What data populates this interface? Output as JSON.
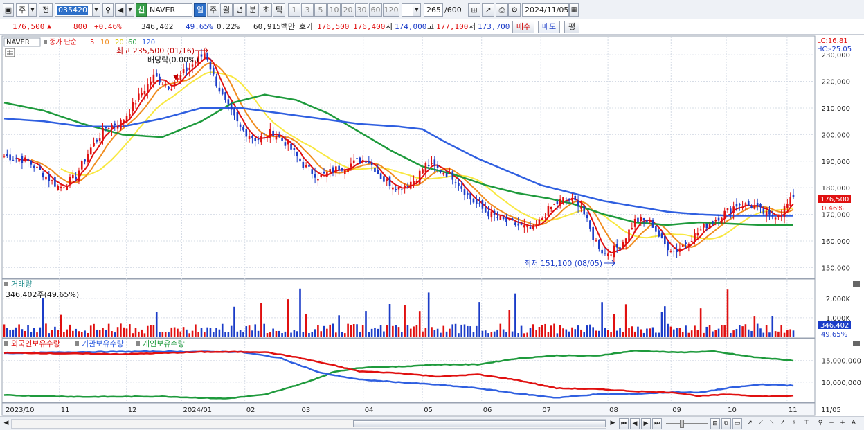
{
  "toolbar": {
    "market": "주",
    "prev_label": "전",
    "code": "035420",
    "new_badge": "신",
    "stock_name": "NAVER",
    "periods": [
      "일",
      "주",
      "월",
      "년",
      "분",
      "초",
      "틱"
    ],
    "active_period": "일",
    "intervals": [
      "1",
      "3",
      "5",
      "10",
      "20",
      "30",
      "60",
      "120"
    ],
    "count": "265",
    "count_total": "/600",
    "date": "2024/11/05"
  },
  "infobar": {
    "price": "176,500",
    "change": "800",
    "change_pct": "+0.46%",
    "volume": "346,402",
    "vol_ratio": "49.65%",
    "turnover_pct": "0.22%",
    "trade_value": "60,915백만",
    "ask_label": "호가",
    "ask1": "176,500",
    "ask2": "176,400",
    "open_label": "시",
    "open": "174,000",
    "high_label": "고",
    "high": "177,100",
    "low_label": "저",
    "low": "173,700",
    "buy_label": "매수",
    "sell_label": "매도",
    "eval_label": "평"
  },
  "chart_data": {
    "type": "candlestick",
    "legend": {
      "name": "NAVER",
      "close_label": "종가 단순",
      "ma": [
        {
          "period": "5",
          "color": "#e01010"
        },
        {
          "period": "10",
          "color": "#f08c1e"
        },
        {
          "period": "20",
          "color": "#f0e020"
        },
        {
          "period": "60",
          "color": "#1e9a3c"
        },
        {
          "period": "120",
          "color": "#2f5fe0"
        }
      ]
    },
    "lc_label": "LC:16.81",
    "hc_label": "HC:-25.05",
    "price_axis": [
      "230,000",
      "220,000",
      "210,000",
      "200,000",
      "190,000",
      "180,000",
      "170,000",
      "160,000",
      "150,000"
    ],
    "price_ticks": [
      230000,
      220000,
      210000,
      200000,
      190000,
      180000,
      170000,
      160000,
      150000
    ],
    "price_range": [
      147500,
      235500
    ],
    "last_price_tag": "176,500",
    "last_pct_tag": "0.46%",
    "high_annotation": "최고 235,500 (01/16)",
    "low_annotation": "최저 151,100 (08/05)",
    "dividend_annotation": "배당락(0.00%)",
    "x_labels": [
      "2023/10",
      "11",
      "12",
      "2024/01",
      "02",
      "03",
      "04",
      "05",
      "06",
      "07",
      "08",
      "09",
      "10",
      "11",
      "11/05"
    ],
    "price_series": [
      [
        0,
        192
      ],
      [
        0.03,
        190
      ],
      [
        0.05,
        185
      ],
      [
        0.07,
        180
      ],
      [
        0.09,
        184
      ],
      [
        0.11,
        195
      ],
      [
        0.13,
        203
      ],
      [
        0.15,
        205
      ],
      [
        0.17,
        214
      ],
      [
        0.19,
        222
      ],
      [
        0.21,
        218
      ],
      [
        0.23,
        224
      ],
      [
        0.245,
        228
      ],
      [
        0.255,
        231
      ],
      [
        0.265,
        222
      ],
      [
        0.28,
        212
      ],
      [
        0.3,
        202
      ],
      [
        0.32,
        198
      ],
      [
        0.34,
        201
      ],
      [
        0.36,
        196
      ],
      [
        0.38,
        188
      ],
      [
        0.4,
        184
      ],
      [
        0.42,
        187
      ],
      [
        0.44,
        189
      ],
      [
        0.46,
        191
      ],
      [
        0.48,
        183
      ],
      [
        0.5,
        180
      ],
      [
        0.52,
        183
      ],
      [
        0.535,
        189
      ],
      [
        0.55,
        187
      ],
      [
        0.57,
        184
      ],
      [
        0.59,
        176
      ],
      [
        0.61,
        171
      ],
      [
        0.63,
        168
      ],
      [
        0.65,
        166
      ],
      [
        0.67,
        164
      ],
      [
        0.69,
        172
      ],
      [
        0.71,
        176
      ],
      [
        0.73,
        174
      ],
      [
        0.745,
        162
      ],
      [
        0.76,
        155
      ],
      [
        0.78,
        158
      ],
      [
        0.8,
        168
      ],
      [
        0.82,
        167
      ],
      [
        0.835,
        159
      ],
      [
        0.85,
        156
      ],
      [
        0.87,
        161
      ],
      [
        0.89,
        166
      ],
      [
        0.91,
        170
      ],
      [
        0.93,
        174
      ],
      [
        0.95,
        173
      ],
      [
        0.97,
        169
      ],
      [
        0.985,
        171
      ],
      [
        1.0,
        176.5
      ]
    ],
    "ma60_series": [
      [
        0,
        212
      ],
      [
        0.05,
        209
      ],
      [
        0.1,
        204
      ],
      [
        0.15,
        200
      ],
      [
        0.2,
        199
      ],
      [
        0.25,
        205
      ],
      [
        0.29,
        212
      ],
      [
        0.33,
        215
      ],
      [
        0.37,
        213
      ],
      [
        0.41,
        208
      ],
      [
        0.45,
        201
      ],
      [
        0.49,
        194
      ],
      [
        0.53,
        188
      ],
      [
        0.57,
        185
      ],
      [
        0.61,
        181
      ],
      [
        0.65,
        178
      ],
      [
        0.69,
        176
      ],
      [
        0.72,
        174
      ],
      [
        0.76,
        170
      ],
      [
        0.8,
        167
      ],
      [
        0.84,
        166
      ],
      [
        0.88,
        167
      ],
      [
        0.92,
        166.5
      ],
      [
        0.96,
        166
      ],
      [
        1.0,
        166
      ]
    ],
    "ma120_series": [
      [
        0,
        206
      ],
      [
        0.05,
        205
      ],
      [
        0.1,
        203
      ],
      [
        0.15,
        203
      ],
      [
        0.2,
        206
      ],
      [
        0.25,
        210
      ],
      [
        0.3,
        210
      ],
      [
        0.35,
        208
      ],
      [
        0.4,
        206
      ],
      [
        0.45,
        204
      ],
      [
        0.5,
        203
      ],
      [
        0.53,
        202
      ],
      [
        0.56,
        197
      ],
      [
        0.6,
        191
      ],
      [
        0.64,
        186
      ],
      [
        0.68,
        181
      ],
      [
        0.72,
        178
      ],
      [
        0.76,
        175
      ],
      [
        0.8,
        173
      ],
      [
        0.84,
        171
      ],
      [
        0.88,
        170
      ],
      [
        0.92,
        169.5
      ],
      [
        0.96,
        169.5
      ],
      [
        1.0,
        169.5
      ]
    ],
    "volume": {
      "title": "거래량",
      "current_label": "346,402주(49.65%)",
      "axis": [
        "2,000K",
        "1,000K"
      ],
      "axis_values": [
        2000,
        1000
      ],
      "max": 2600,
      "last_tag": "346,402",
      "last_pct_tag": "49.65%"
    },
    "holdings": {
      "series_names": [
        "외국인보유수량",
        "기관보유수량",
        "개인보유수량"
      ],
      "colors": [
        "#e01010",
        "#2f5fe0",
        "#1e9a3c"
      ],
      "axis": [
        "15,000,000",
        "10,000,000"
      ],
      "axis_values": [
        15000000,
        10000000
      ],
      "range": [
        5500000,
        18000000
      ],
      "foreign": [
        [
          0,
          16.8
        ],
        [
          0.15,
          16.5
        ],
        [
          0.25,
          17.0
        ],
        [
          0.33,
          17.0
        ],
        [
          0.37,
          15.8
        ],
        [
          0.42,
          13.8
        ],
        [
          0.45,
          12.5
        ],
        [
          0.5,
          12.1
        ],
        [
          0.55,
          11.3
        ],
        [
          0.6,
          11.8
        ],
        [
          0.65,
          10.5
        ],
        [
          0.7,
          8.6
        ],
        [
          0.75,
          8.4
        ],
        [
          0.8,
          7.9
        ],
        [
          0.85,
          7.6
        ],
        [
          0.88,
          6.8
        ],
        [
          0.92,
          7.2
        ],
        [
          0.96,
          6.7
        ],
        [
          1.0,
          6.9
        ]
      ],
      "institution": [
        [
          0,
          16.7
        ],
        [
          0.1,
          17.0
        ],
        [
          0.2,
          17.1
        ],
        [
          0.3,
          17.0
        ],
        [
          0.35,
          15.6
        ],
        [
          0.4,
          12.2
        ],
        [
          0.45,
          10.6
        ],
        [
          0.5,
          10.0
        ],
        [
          0.55,
          9.4
        ],
        [
          0.6,
          8.6
        ],
        [
          0.65,
          7.4
        ],
        [
          0.7,
          6.4
        ],
        [
          0.75,
          7.2
        ],
        [
          0.8,
          7.3
        ],
        [
          0.85,
          7.7
        ],
        [
          0.88,
          7.6
        ],
        [
          0.92,
          8.7
        ],
        [
          0.96,
          9.5
        ],
        [
          1.0,
          9.2
        ]
      ],
      "individual": [
        [
          0,
          7.0
        ],
        [
          0.1,
          6.6
        ],
        [
          0.2,
          6.7
        ],
        [
          0.28,
          6.2
        ],
        [
          0.33,
          7.1
        ],
        [
          0.38,
          9.8
        ],
        [
          0.42,
          12.5
        ],
        [
          0.46,
          13.5
        ],
        [
          0.5,
          13.6
        ],
        [
          0.55,
          14.1
        ],
        [
          0.6,
          14.1
        ],
        [
          0.65,
          15.5
        ],
        [
          0.7,
          16.2
        ],
        [
          0.75,
          16.1
        ],
        [
          0.8,
          17.3
        ],
        [
          0.85,
          16.9
        ],
        [
          0.9,
          17.1
        ],
        [
          0.95,
          15.8
        ],
        [
          1.0,
          15.0
        ]
      ]
    }
  },
  "colors": {
    "up": "#e01010",
    "down": "#1b3cc8",
    "grid": "#cfd6e2"
  }
}
